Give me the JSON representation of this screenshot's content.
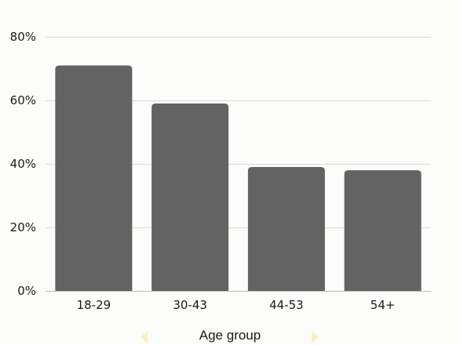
{
  "chart_data": {
    "type": "bar",
    "title": "",
    "xlabel": "Age group",
    "ylabel": "",
    "categories": [
      "18-29",
      "30-43",
      "44-53",
      "54+"
    ],
    "values": [
      71,
      59,
      39,
      38
    ],
    "ylim": [
      0,
      80
    ],
    "yticks": [
      0,
      20,
      40,
      60,
      80
    ],
    "ytick_labels": [
      "0%",
      "20%",
      "40%",
      "60%",
      "80%"
    ],
    "grid": true,
    "legend": "none",
    "bar_color": "#636363",
    "grid_color": "#d8d8d4",
    "background_color": "#fcfcfa",
    "pager": {
      "prev_icon": "chevron-left-icon",
      "next_icon": "chevron-right-icon",
      "arrow_color": "#fbefc0"
    }
  }
}
